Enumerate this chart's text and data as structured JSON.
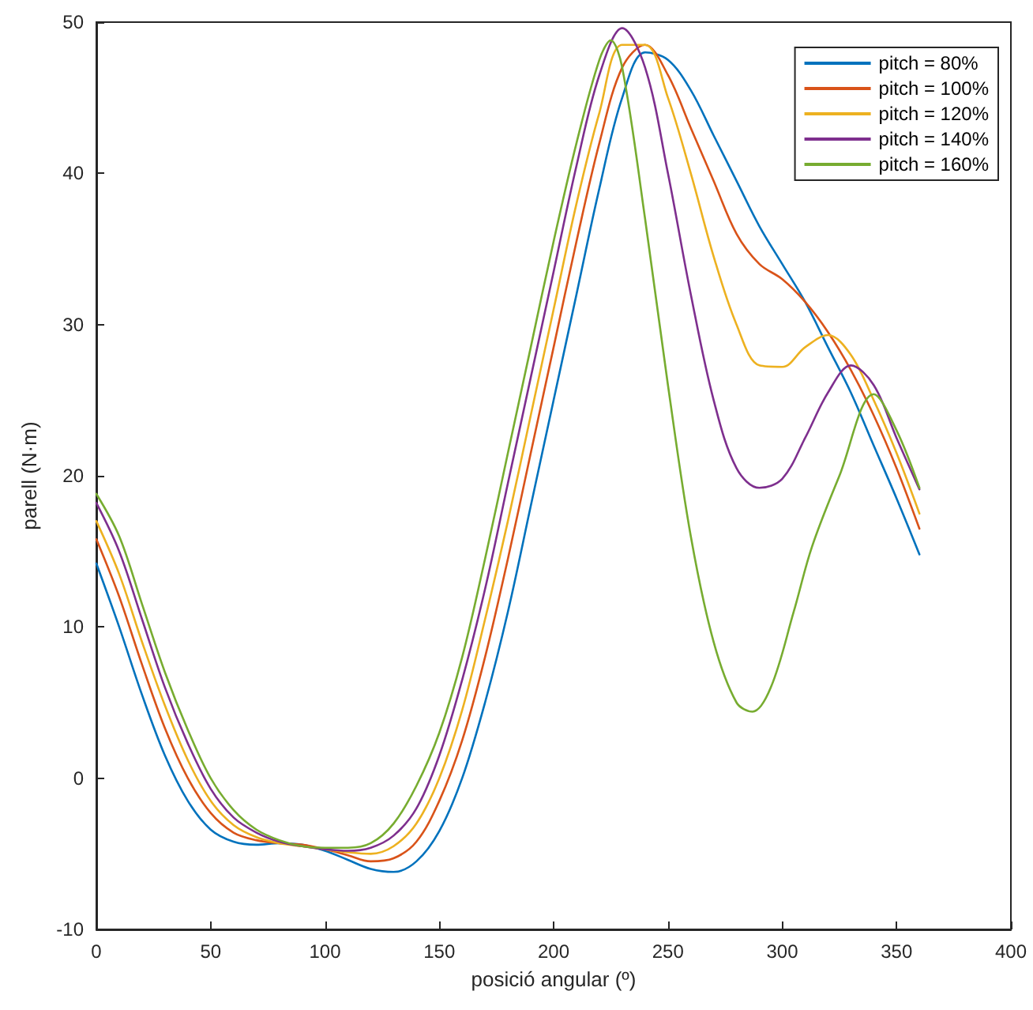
{
  "chart_data": {
    "type": "line",
    "xlabel": "posició angular (º)",
    "ylabel": "parell (N·m)",
    "xlim": [
      0,
      400
    ],
    "xticks": [
      0,
      50,
      100,
      150,
      200,
      250,
      300,
      350,
      400
    ],
    "ylim": [
      -10,
      50
    ],
    "yticks": [
      -10,
      0,
      10,
      20,
      30,
      40,
      50
    ],
    "grid": false,
    "legend": "top right",
    "marker": "none",
    "line_style": "solid",
    "series": [
      {
        "name": "pitch = 80%",
        "color": "#0072bd",
        "x": [
          0,
          10,
          20,
          30,
          40,
          50,
          60,
          70,
          80,
          90,
          100,
          110,
          120,
          130,
          140,
          150,
          160,
          170,
          180,
          190,
          200,
          210,
          220,
          230,
          240,
          250,
          260,
          270,
          280,
          290,
          300,
          310,
          320,
          330,
          340,
          350,
          360
        ],
        "values": [
          14.2,
          10,
          5.5,
          1.5,
          -1.5,
          -3.4,
          -4.2,
          -4.4,
          -4.3,
          -4.4,
          -4.8,
          -5.4,
          -6.0,
          -6.2,
          -5.5,
          -3.5,
          0,
          5,
          11,
          18,
          25,
          32,
          39,
          45,
          48,
          47.5,
          45.5,
          42.5,
          39.5,
          36.5,
          34,
          31.5,
          28.5,
          25.5,
          22,
          18.5,
          14.8
        ]
      },
      {
        "name": "pitch = 100%",
        "color": "#d95319",
        "x": [
          0,
          10,
          20,
          30,
          40,
          50,
          60,
          70,
          80,
          90,
          100,
          110,
          120,
          130,
          140,
          150,
          160,
          170,
          180,
          190,
          200,
          210,
          220,
          230,
          240,
          250,
          260,
          270,
          280,
          290,
          300,
          310,
          320,
          330,
          340,
          350,
          360
        ],
        "values": [
          15.8,
          12,
          7.5,
          3.3,
          0,
          -2.3,
          -3.6,
          -4.1,
          -4.3,
          -4.4,
          -4.7,
          -5.1,
          -5.5,
          -5.3,
          -4.2,
          -1.5,
          2.5,
          8,
          14.5,
          21.5,
          28.5,
          35.5,
          42,
          47,
          48.5,
          46.5,
          43,
          39.5,
          36,
          34,
          33,
          31.5,
          29.5,
          27,
          24,
          20.5,
          16.5
        ]
      },
      {
        "name": "pitch = 120%",
        "color": "#edb120",
        "x": [
          0,
          10,
          20,
          30,
          40,
          50,
          60,
          70,
          80,
          90,
          100,
          110,
          120,
          130,
          140,
          150,
          160,
          170,
          180,
          190,
          200,
          210,
          220,
          230,
          240,
          250,
          260,
          270,
          280,
          290,
          300,
          310,
          320,
          330,
          340,
          350,
          360
        ],
        "values": [
          17.0,
          13.5,
          9,
          4.8,
          1.2,
          -1.5,
          -3.1,
          -3.9,
          -4.3,
          -4.5,
          -4.7,
          -4.9,
          -5.0,
          -4.5,
          -3,
          0,
          4.5,
          10.5,
          17,
          24,
          31,
          38,
          44,
          48.5,
          48.5,
          45,
          40,
          34.5,
          30,
          27.3,
          27.2,
          28.5,
          29.3,
          28,
          25,
          21.5,
          17.5
        ]
      },
      {
        "name": "pitch = 140%",
        "color": "#7e2f8e",
        "x": [
          0,
          10,
          20,
          30,
          40,
          50,
          60,
          70,
          80,
          90,
          100,
          110,
          120,
          130,
          140,
          150,
          160,
          170,
          180,
          190,
          200,
          210,
          220,
          230,
          240,
          250,
          260,
          270,
          280,
          290,
          300,
          310,
          320,
          330,
          340,
          350,
          360
        ],
        "values": [
          18.2,
          15,
          10.5,
          6,
          2.3,
          -0.7,
          -2.6,
          -3.6,
          -4.2,
          -4.5,
          -4.7,
          -4.8,
          -4.6,
          -3.8,
          -2,
          1.5,
          6.5,
          12.5,
          19.5,
          26.5,
          33.5,
          40.5,
          46.5,
          49.6,
          47,
          40,
          32,
          25,
          20.5,
          19.2,
          19.8,
          22.5,
          25.5,
          27.3,
          26,
          22.5,
          19.1
        ]
      },
      {
        "name": "pitch = 160%",
        "color": "#77ac30",
        "x": [
          0,
          10,
          20,
          30,
          40,
          50,
          60,
          70,
          80,
          90,
          100,
          110,
          120,
          130,
          140,
          150,
          160,
          170,
          180,
          190,
          200,
          210,
          220,
          225,
          230,
          240,
          250,
          260,
          270,
          280,
          287,
          295,
          305,
          313,
          325,
          340,
          350,
          360
        ],
        "values": [
          18.8,
          16,
          11.5,
          7,
          3.2,
          0,
          -2.1,
          -3.4,
          -4.1,
          -4.5,
          -4.6,
          -4.6,
          -4.3,
          -3,
          -0.5,
          3,
          8,
          14.5,
          21.5,
          28.5,
          35.5,
          42,
          47.5,
          48.8,
          47,
          37,
          26,
          16,
          9,
          5,
          4.4,
          6,
          11,
          15.3,
          20,
          25.4,
          23,
          19.2
        ]
      }
    ]
  }
}
